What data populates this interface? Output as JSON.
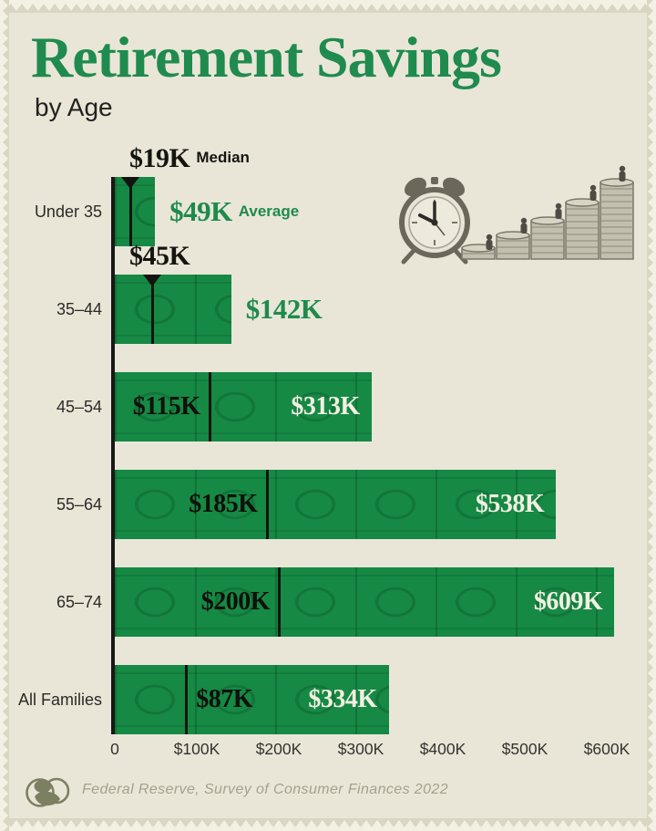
{
  "title": "Retirement Savings",
  "subtitle": "by Age",
  "source": "Federal Reserve, Survey of Consumer Finances 2022",
  "colors": {
    "background": "#e9e6d8",
    "bar_green": "#168944",
    "title_green": "#1f8b4e",
    "median_text": "#15150f",
    "average_text_outside": "#1e8a4c",
    "average_text_inside": "#f2efe2",
    "axis": "#181814",
    "source_text": "#a3a28c"
  },
  "chart_data": {
    "type": "bar",
    "title": "Retirement Savings by Age",
    "categories": [
      "Under 35",
      "35–44",
      "45–54",
      "55–64",
      "65–74",
      "All Families"
    ],
    "series": [
      {
        "name": "Median",
        "values": [
          19,
          45,
          115,
          185,
          200,
          87
        ],
        "labels": [
          "$19K",
          "$45K",
          "$115K",
          "$185K",
          "$200K",
          "$87K"
        ]
      },
      {
        "name": "Average",
        "values": [
          49,
          142,
          313,
          538,
          609,
          334
        ],
        "labels": [
          "$49K",
          "$142K",
          "$313K",
          "$538K",
          "$609K",
          "$334K"
        ]
      }
    ],
    "unit": "USD thousands",
    "xlabel": "",
    "ylabel": "",
    "xlim": [
      0,
      650
    ],
    "grid": false,
    "legend_position": "inline-first-row",
    "x_ticks": [
      "0",
      "$100K",
      "$200K",
      "$300K",
      "$400K",
      "$500K",
      "$600K"
    ],
    "x_tick_values": [
      0,
      100,
      200,
      300,
      400,
      500,
      600
    ],
    "layout": {
      "median_label_style": [
        "above",
        "above",
        "inside-left",
        "inside-left",
        "inside-left",
        "inside-right"
      ],
      "average_label_style": [
        "outside",
        "outside",
        "inside",
        "inside",
        "inside",
        "inside"
      ],
      "median_suffixes": [
        "Median",
        "",
        "",
        "",
        "",
        ""
      ],
      "average_suffixes": [
        "Average",
        "",
        "",
        "",
        "",
        ""
      ]
    }
  },
  "illustration": {
    "name": "alarm-clock-and-rising-coin-stacks"
  },
  "logo": {
    "name": "voronoi-style-logo"
  }
}
